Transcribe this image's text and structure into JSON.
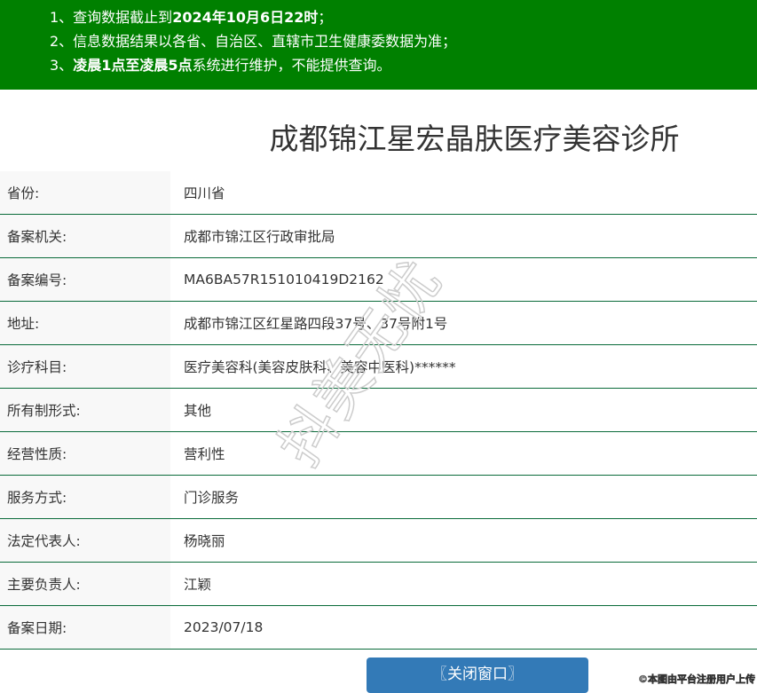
{
  "notice": {
    "line1_prefix": "1、查询数据截止到",
    "line1_bold": "2024年10月6日22时",
    "line1_suffix": "；",
    "line2": "2、信息数据结果以各省、自治区、直辖市卫生健康委数据为准；",
    "line3_prefix": "3、",
    "line3_bold": "凌晨1点至凌晨5点",
    "line3_suffix": "系统进行维护，不能提供查询。"
  },
  "title": "成都锦江星宏晶肤医疗美容诊所",
  "rows": [
    {
      "label": "省份:",
      "value": "四川省"
    },
    {
      "label": "备案机关:",
      "value": "成都市锦江区行政审批局"
    },
    {
      "label": "备案编号:",
      "value": "MA6BA57R151010419D2162"
    },
    {
      "label": "地址:",
      "value": "成都市锦江区红星路四段37号、37号附1号"
    },
    {
      "label": "诊疗科目:",
      "value": "医疗美容科(美容皮肤科、美容中医科)******"
    },
    {
      "label": "所有制形式:",
      "value": "其他"
    },
    {
      "label": "经营性质:",
      "value": "营利性"
    },
    {
      "label": "服务方式:",
      "value": "门诊服务"
    },
    {
      "label": "法定代表人:",
      "value": "杨晓丽"
    },
    {
      "label": "主要负责人:",
      "value": "江颖"
    },
    {
      "label": "备案日期:",
      "value": "2023/07/18"
    }
  ],
  "close_button": "〖关闭窗口〗",
  "watermark": "抖美无忧",
  "copyright": "©本图由平台注册用户上传",
  "colors": {
    "notice_bg": "#008000",
    "divider": "#0a6b3a",
    "button": "#337ab7"
  }
}
